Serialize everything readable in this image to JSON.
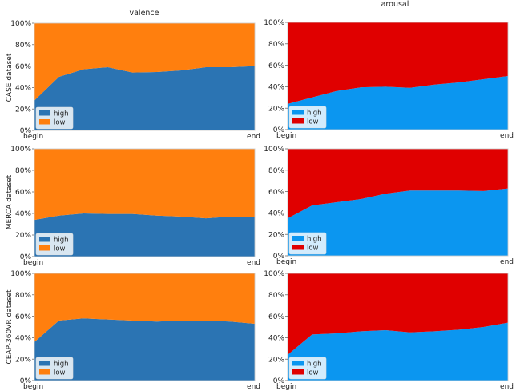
{
  "figure": {
    "column_titles": [
      "valence",
      "arousal"
    ],
    "row_labels": [
      "CASE dataset",
      "MERCA dataset",
      "CEAP-360VR dataset"
    ]
  },
  "colors": {
    "valence_high": "#2b74b3",
    "valence_low": "#ff7f0e",
    "arousal_high": "#0b96f0",
    "arousal_low": "#e00000",
    "frame": "#cfcfcf"
  },
  "chart_data": [
    {
      "type": "area",
      "stacked": true,
      "normalized": true,
      "row": "CASE dataset",
      "column": "valence",
      "x_tick_labels": [
        "begin",
        "end"
      ],
      "y_tick_labels": [
        "0%",
        "20%",
        "40%",
        "60%",
        "80%",
        "100%"
      ],
      "ylim": [
        0,
        100
      ],
      "grid": false,
      "legend_position": "lower-left",
      "series": [
        {
          "name": "high",
          "color": "#2b74b3",
          "values": [
            28,
            50,
            57,
            59,
            54,
            54.5,
            56,
            59,
            59,
            60
          ]
        },
        {
          "name": "low",
          "color": "#ff7f0e",
          "values": [
            72,
            50,
            43,
            41,
            46,
            45.5,
            44,
            41,
            41,
            40
          ]
        }
      ]
    },
    {
      "type": "area",
      "stacked": true,
      "normalized": true,
      "row": "CASE dataset",
      "column": "arousal",
      "x_tick_labels": [
        "begin",
        "end"
      ],
      "y_tick_labels": [
        "0%",
        "20%",
        "40%",
        "60%",
        "80%",
        "100%"
      ],
      "ylim": [
        0,
        100
      ],
      "grid": false,
      "legend_position": "lower-left",
      "series": [
        {
          "name": "high",
          "color": "#0b96f0",
          "values": [
            24,
            30,
            36,
            39.5,
            40,
            39,
            42,
            44,
            47,
            50
          ]
        },
        {
          "name": "low",
          "color": "#e00000",
          "values": [
            76,
            70,
            64,
            60.5,
            60,
            61,
            58,
            56,
            53,
            50
          ]
        }
      ]
    },
    {
      "type": "area",
      "stacked": true,
      "normalized": true,
      "row": "MERCA dataset",
      "column": "valence",
      "x_tick_labels": [
        "begin",
        "end"
      ],
      "y_tick_labels": [
        "0%",
        "20%",
        "40%",
        "60%",
        "80%",
        "100%"
      ],
      "ylim": [
        0,
        100
      ],
      "grid": false,
      "legend_position": "lower-left",
      "series": [
        {
          "name": "high",
          "color": "#2b74b3",
          "values": [
            34,
            38,
            40,
            39.5,
            39.5,
            38,
            37,
            35.5,
            37,
            37
          ]
        },
        {
          "name": "low",
          "color": "#ff7f0e",
          "values": [
            66,
            62,
            60,
            60.5,
            60.5,
            62,
            63,
            64.5,
            63,
            63
          ]
        }
      ]
    },
    {
      "type": "area",
      "stacked": true,
      "normalized": true,
      "row": "MERCA dataset",
      "column": "arousal",
      "x_tick_labels": [
        "begin",
        "end"
      ],
      "y_tick_labels": [
        "0%",
        "20%",
        "40%",
        "60%",
        "80%",
        "100%"
      ],
      "ylim": [
        0,
        100
      ],
      "grid": false,
      "legend_position": "lower-left",
      "series": [
        {
          "name": "high",
          "color": "#0b96f0",
          "values": [
            35,
            47,
            50,
            53,
            58,
            61,
            61,
            61,
            60.5,
            63
          ]
        },
        {
          "name": "low",
          "color": "#e00000",
          "values": [
            65,
            53,
            50,
            47,
            42,
            39,
            39,
            39,
            39.5,
            37
          ]
        }
      ]
    },
    {
      "type": "area",
      "stacked": true,
      "normalized": true,
      "row": "CEAP-360VR dataset",
      "column": "valence",
      "x_tick_labels": [
        "begin",
        "end"
      ],
      "y_tick_labels": [
        "0%",
        "20%",
        "40%",
        "60%",
        "80%",
        "100%"
      ],
      "ylim": [
        0,
        100
      ],
      "grid": false,
      "legend_position": "lower-left",
      "series": [
        {
          "name": "high",
          "color": "#2b74b3",
          "values": [
            36,
            56,
            58,
            57,
            56,
            55,
            56,
            56,
            55,
            53
          ]
        },
        {
          "name": "low",
          "color": "#ff7f0e",
          "values": [
            64,
            44,
            42,
            43,
            44,
            45,
            44,
            44,
            45,
            47
          ]
        }
      ]
    },
    {
      "type": "area",
      "stacked": true,
      "normalized": true,
      "row": "CEAP-360VR dataset",
      "column": "arousal",
      "x_tick_labels": [
        "begin",
        "end"
      ],
      "y_tick_labels": [
        "0%",
        "20%",
        "40%",
        "60%",
        "80%",
        "100%"
      ],
      "ylim": [
        0,
        100
      ],
      "grid": false,
      "legend_position": "lower-left",
      "series": [
        {
          "name": "high",
          "color": "#0b96f0",
          "values": [
            24,
            43,
            44,
            46,
            47,
            45,
            46,
            47.5,
            50,
            54
          ]
        },
        {
          "name": "low",
          "color": "#e00000",
          "values": [
            76,
            57,
            56,
            54,
            53,
            55,
            54,
            52.5,
            50,
            46
          ]
        }
      ]
    }
  ]
}
